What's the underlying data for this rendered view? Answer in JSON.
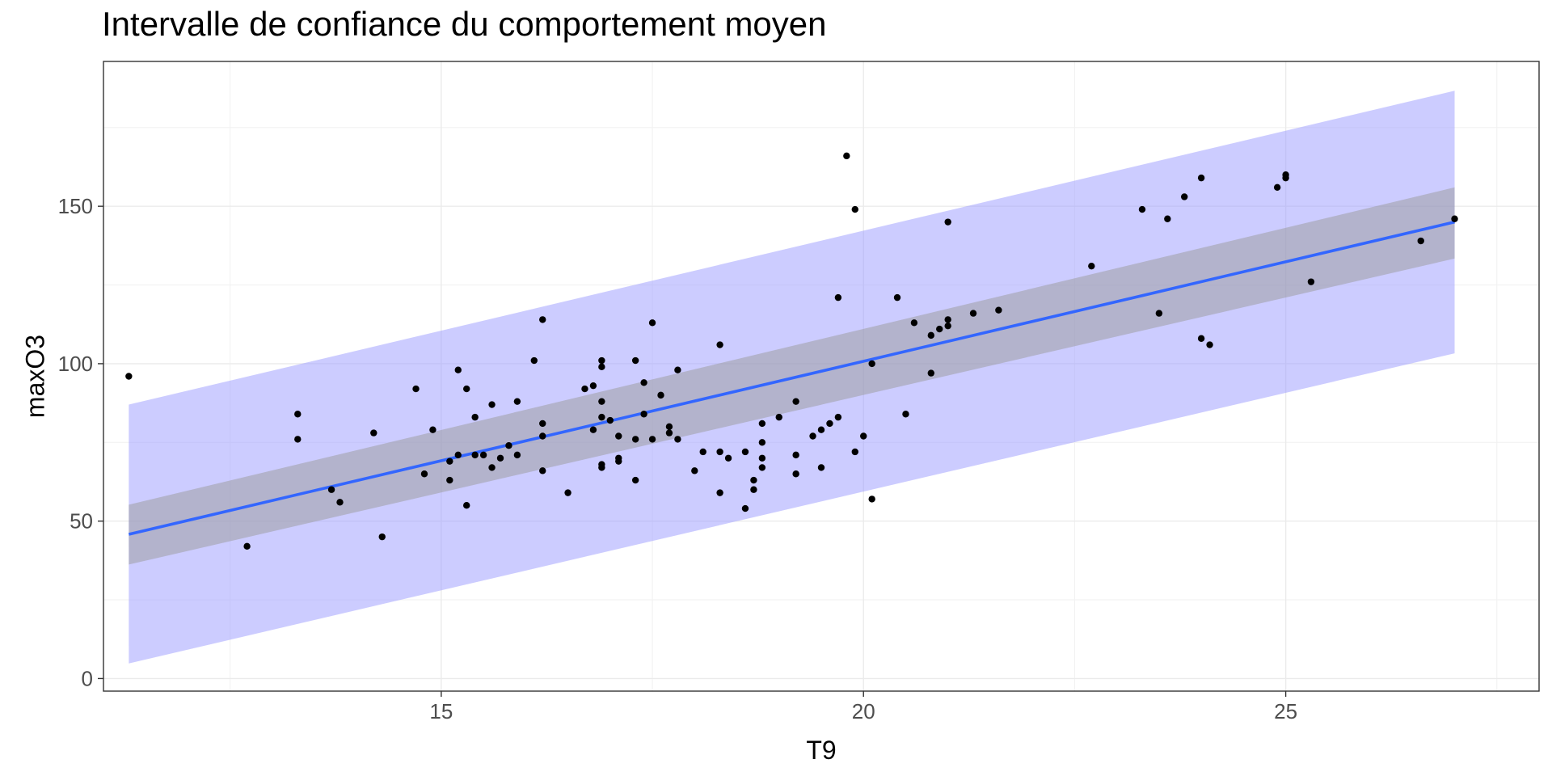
{
  "chart_data": {
    "type": "scatter",
    "title": "Intervalle de confiance du comportement moyen",
    "xlabel": "T9",
    "ylabel": "maxO3",
    "xlim": [
      11.0,
      28.0
    ],
    "ylim": [
      -4.0,
      196.0
    ],
    "x_ticks": [
      15,
      20,
      25
    ],
    "y_ticks": [
      0,
      50,
      100,
      150
    ],
    "grid": true,
    "colors": {
      "points": "#000000",
      "fit_line": "#3366FF",
      "confidence_band": "#999999",
      "prediction_band": "#9999FF"
    },
    "series": [
      {
        "type": "scatter",
        "x": [
          11.3,
          12.7,
          13.3,
          13.3,
          13.7,
          13.8,
          14.2,
          14.3,
          14.7,
          14.8,
          14.9,
          15.1,
          15.1,
          15.2,
          15.2,
          15.3,
          15.3,
          15.4,
          15.4,
          15.5,
          15.6,
          15.6,
          15.7,
          15.8,
          15.9,
          15.9,
          16.1,
          16.2,
          16.2,
          16.2,
          16.2,
          16.5,
          16.7,
          16.8,
          16.8,
          16.9,
          16.9,
          16.9,
          16.9,
          16.9,
          16.9,
          17.0,
          17.1,
          17.1,
          17.1,
          17.3,
          17.3,
          17.3,
          17.4,
          17.4,
          17.5,
          17.5,
          17.6,
          17.7,
          17.7,
          17.8,
          17.8,
          18.0,
          18.1,
          18.3,
          18.3,
          18.3,
          18.4,
          18.6,
          18.6,
          18.7,
          18.7,
          18.8,
          18.8,
          18.8,
          18.8,
          19.0,
          19.2,
          19.2,
          19.2,
          19.4,
          19.5,
          19.5,
          19.6,
          19.7,
          19.7,
          19.8,
          19.9,
          19.9,
          20.0,
          20.1,
          20.1,
          20.4,
          20.5,
          20.6,
          20.8,
          20.8,
          20.9,
          21.0,
          21.0,
          21.0,
          21.3,
          21.6,
          22.7,
          23.3,
          23.5,
          23.6,
          23.8,
          24.0,
          24.0,
          24.1,
          24.9,
          25.0,
          25.0,
          25.3,
          26.6,
          27.0
        ],
        "y": [
          96,
          42,
          84,
          76,
          60,
          56,
          78,
          45,
          92,
          65,
          79,
          69,
          63,
          98,
          71,
          92,
          55,
          83,
          71,
          71,
          87,
          67,
          70,
          74,
          88,
          71,
          101,
          114,
          81,
          77,
          66,
          59,
          92,
          93,
          79,
          101,
          99,
          88,
          83,
          68,
          67,
          82,
          77,
          70,
          69,
          101,
          76,
          63,
          94,
          84,
          113,
          76,
          90,
          80,
          78,
          98,
          76,
          66,
          72,
          106,
          72,
          59,
          70,
          72,
          54,
          63,
          60,
          81,
          75,
          70,
          67,
          83,
          88,
          71,
          65,
          77,
          79,
          67,
          81,
          121,
          83,
          166,
          149,
          72,
          77,
          100,
          57,
          121,
          84,
          113,
          109,
          97,
          111,
          145,
          114,
          112,
          116,
          117,
          131,
          149,
          116,
          146,
          153,
          159,
          108,
          106,
          156,
          160,
          159,
          126,
          139,
          146
        ]
      },
      {
        "type": "line",
        "x": [
          11.3,
          27.0
        ],
        "y": [
          45.8,
          145.0
        ]
      },
      {
        "type": "area",
        "x": [
          11.3,
          27.0
        ],
        "y_low": [
          36.2,
          133.4
        ],
        "y_high": [
          55.2,
          156.0
        ]
      },
      {
        "type": "area",
        "x": [
          11.3,
          27.0
        ],
        "y_low": [
          4.8,
          103.3
        ],
        "y_high": [
          87.0,
          186.7
        ]
      }
    ]
  }
}
